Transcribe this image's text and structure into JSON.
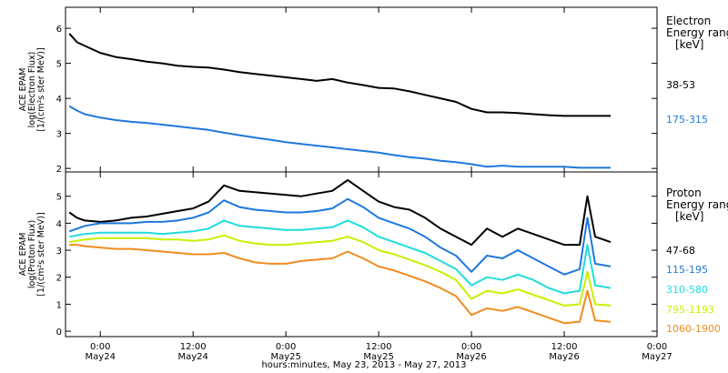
{
  "chart_data": [
    {
      "type": "line",
      "panel": "electron",
      "ylabel_lines": [
        "ACE EPAM",
        "log(Electron Flux)",
        "[1/(cm²s ster MeV)]"
      ],
      "legend_title_lines": [
        "Electron",
        "Energy range",
        "[keV]"
      ],
      "ylim": [
        1.9,
        6.6
      ],
      "yticks": [
        2,
        3,
        4,
        5,
        6
      ],
      "series": [
        {
          "name": "38-53",
          "color": "#000000",
          "points": [
            [
              -4,
              5.85
            ],
            [
              -3,
              5.6
            ],
            [
              -2,
              5.5
            ],
            [
              0,
              5.3
            ],
            [
              2,
              5.18
            ],
            [
              4,
              5.12
            ],
            [
              6,
              5.05
            ],
            [
              8,
              5.0
            ],
            [
              10,
              4.93
            ],
            [
              12,
              4.9
            ],
            [
              14,
              4.88
            ],
            [
              16,
              4.82
            ],
            [
              18,
              4.75
            ],
            [
              20,
              4.7
            ],
            [
              22,
              4.65
            ],
            [
              24,
              4.6
            ],
            [
              26,
              4.55
            ],
            [
              28,
              4.5
            ],
            [
              30,
              4.55
            ],
            [
              32,
              4.45
            ],
            [
              34,
              4.38
            ],
            [
              36,
              4.3
            ],
            [
              38,
              4.28
            ],
            [
              40,
              4.2
            ],
            [
              42,
              4.1
            ],
            [
              44,
              4.0
            ],
            [
              46,
              3.9
            ],
            [
              48,
              3.7
            ],
            [
              50,
              3.6
            ],
            [
              52,
              3.6
            ],
            [
              54,
              3.58
            ],
            [
              56,
              3.55
            ],
            [
              58,
              3.52
            ],
            [
              60,
              3.5
            ],
            [
              62,
              3.5
            ],
            [
              64,
              3.5
            ],
            [
              66,
              3.5
            ]
          ]
        },
        {
          "name": "175-315",
          "color": "#1E78DC",
          "points": [
            [
              -4,
              3.78
            ],
            [
              -3,
              3.65
            ],
            [
              -2,
              3.55
            ],
            [
              0,
              3.45
            ],
            [
              2,
              3.38
            ],
            [
              4,
              3.33
            ],
            [
              6,
              3.3
            ],
            [
              8,
              3.25
            ],
            [
              10,
              3.2
            ],
            [
              12,
              3.15
            ],
            [
              14,
              3.1
            ],
            [
              16,
              3.02
            ],
            [
              18,
              2.95
            ],
            [
              20,
              2.88
            ],
            [
              22,
              2.82
            ],
            [
              24,
              2.75
            ],
            [
              26,
              2.7
            ],
            [
              28,
              2.65
            ],
            [
              30,
              2.6
            ],
            [
              32,
              2.55
            ],
            [
              34,
              2.5
            ],
            [
              36,
              2.45
            ],
            [
              38,
              2.38
            ],
            [
              40,
              2.32
            ],
            [
              42,
              2.28
            ],
            [
              44,
              2.22
            ],
            [
              46,
              2.18
            ],
            [
              48,
              2.12
            ],
            [
              50,
              2.05
            ],
            [
              52,
              2.08
            ],
            [
              54,
              2.05
            ],
            [
              56,
              2.05
            ],
            [
              58,
              2.05
            ],
            [
              60,
              2.05
            ],
            [
              62,
              2.02
            ],
            [
              64,
              2.02
            ],
            [
              66,
              2.02
            ]
          ]
        }
      ]
    },
    {
      "type": "line",
      "panel": "proton",
      "ylabel_lines": [
        "ACE EPAM",
        "log(Proton Flux)",
        "[1/(cm²s ster MeV)]"
      ],
      "legend_title_lines": [
        "Proton",
        "Energy range",
        "[keV]"
      ],
      "ylim": [
        -0.2,
        5.9
      ],
      "yticks": [
        0,
        1,
        2,
        3,
        4,
        5
      ],
      "series": [
        {
          "name": "47-68",
          "color": "#000000",
          "points": [
            [
              -4,
              4.4
            ],
            [
              -3,
              4.2
            ],
            [
              -2,
              4.1
            ],
            [
              0,
              4.05
            ],
            [
              2,
              4.1
            ],
            [
              4,
              4.2
            ],
            [
              6,
              4.25
            ],
            [
              8,
              4.35
            ],
            [
              10,
              4.45
            ],
            [
              12,
              4.55
            ],
            [
              14,
              4.8
            ],
            [
              16,
              5.4
            ],
            [
              18,
              5.2
            ],
            [
              20,
              5.15
            ],
            [
              22,
              5.1
            ],
            [
              24,
              5.05
            ],
            [
              26,
              5.0
            ],
            [
              28,
              5.1
            ],
            [
              30,
              5.2
            ],
            [
              32,
              5.6
            ],
            [
              34,
              5.2
            ],
            [
              36,
              4.8
            ],
            [
              38,
              4.6
            ],
            [
              40,
              4.5
            ],
            [
              42,
              4.2
            ],
            [
              44,
              3.8
            ],
            [
              46,
              3.5
            ],
            [
              48,
              3.2
            ],
            [
              50,
              3.8
            ],
            [
              52,
              3.5
            ],
            [
              54,
              3.8
            ],
            [
              56,
              3.6
            ],
            [
              58,
              3.4
            ],
            [
              60,
              3.2
            ],
            [
              62,
              3.2
            ],
            [
              63,
              5.0
            ],
            [
              64,
              3.5
            ],
            [
              66,
              3.3
            ]
          ]
        },
        {
          "name": "115-195",
          "color": "#1E78DC",
          "points": [
            [
              -4,
              3.7
            ],
            [
              -3,
              3.8
            ],
            [
              -2,
              3.9
            ],
            [
              0,
              4.0
            ],
            [
              2,
              4.0
            ],
            [
              4,
              4.0
            ],
            [
              6,
              4.05
            ],
            [
              8,
              4.05
            ],
            [
              10,
              4.1
            ],
            [
              12,
              4.2
            ],
            [
              14,
              4.4
            ],
            [
              16,
              4.85
            ],
            [
              18,
              4.6
            ],
            [
              20,
              4.5
            ],
            [
              22,
              4.45
            ],
            [
              24,
              4.4
            ],
            [
              26,
              4.4
            ],
            [
              28,
              4.45
            ],
            [
              30,
              4.55
            ],
            [
              32,
              4.9
            ],
            [
              34,
              4.6
            ],
            [
              36,
              4.2
            ],
            [
              38,
              4.0
            ],
            [
              40,
              3.8
            ],
            [
              42,
              3.5
            ],
            [
              44,
              3.1
            ],
            [
              46,
              2.8
            ],
            [
              48,
              2.2
            ],
            [
              50,
              2.8
            ],
            [
              52,
              2.7
            ],
            [
              54,
              3.0
            ],
            [
              56,
              2.7
            ],
            [
              58,
              2.4
            ],
            [
              60,
              2.1
            ],
            [
              62,
              2.3
            ],
            [
              63,
              4.2
            ],
            [
              64,
              2.5
            ],
            [
              66,
              2.4
            ]
          ]
        },
        {
          "name": "310-580",
          "color": "#20DCDC",
          "points": [
            [
              -4,
              3.5
            ],
            [
              -3,
              3.55
            ],
            [
              -2,
              3.6
            ],
            [
              0,
              3.65
            ],
            [
              2,
              3.65
            ],
            [
              4,
              3.65
            ],
            [
              6,
              3.65
            ],
            [
              8,
              3.6
            ],
            [
              10,
              3.65
            ],
            [
              12,
              3.7
            ],
            [
              14,
              3.8
            ],
            [
              16,
              4.1
            ],
            [
              18,
              3.9
            ],
            [
              20,
              3.85
            ],
            [
              22,
              3.8
            ],
            [
              24,
              3.75
            ],
            [
              26,
              3.75
            ],
            [
              28,
              3.8
            ],
            [
              30,
              3.85
            ],
            [
              32,
              4.1
            ],
            [
              34,
              3.85
            ],
            [
              36,
              3.5
            ],
            [
              38,
              3.3
            ],
            [
              40,
              3.1
            ],
            [
              42,
              2.9
            ],
            [
              44,
              2.6
            ],
            [
              46,
              2.3
            ],
            [
              48,
              1.7
            ],
            [
              50,
              2.0
            ],
            [
              52,
              1.9
            ],
            [
              54,
              2.1
            ],
            [
              56,
              1.9
            ],
            [
              58,
              1.6
            ],
            [
              60,
              1.4
            ],
            [
              62,
              1.5
            ],
            [
              63,
              3.2
            ],
            [
              64,
              1.7
            ],
            [
              66,
              1.6
            ]
          ]
        },
        {
          "name": "795-1193",
          "color": "#C8F000",
          "points": [
            [
              -4,
              3.3
            ],
            [
              -3,
              3.35
            ],
            [
              -2,
              3.4
            ],
            [
              0,
              3.45
            ],
            [
              2,
              3.45
            ],
            [
              4,
              3.45
            ],
            [
              6,
              3.45
            ],
            [
              8,
              3.4
            ],
            [
              10,
              3.4
            ],
            [
              12,
              3.35
            ],
            [
              14,
              3.4
            ],
            [
              16,
              3.55
            ],
            [
              18,
              3.35
            ],
            [
              20,
              3.25
            ],
            [
              22,
              3.2
            ],
            [
              24,
              3.2
            ],
            [
              26,
              3.25
            ],
            [
              28,
              3.3
            ],
            [
              30,
              3.35
            ],
            [
              32,
              3.5
            ],
            [
              34,
              3.3
            ],
            [
              36,
              3.0
            ],
            [
              38,
              2.85
            ],
            [
              40,
              2.65
            ],
            [
              42,
              2.45
            ],
            [
              44,
              2.2
            ],
            [
              46,
              1.9
            ],
            [
              48,
              1.2
            ],
            [
              50,
              1.5
            ],
            [
              52,
              1.4
            ],
            [
              54,
              1.55
            ],
            [
              56,
              1.35
            ],
            [
              58,
              1.15
            ],
            [
              60,
              0.95
            ],
            [
              62,
              1.0
            ],
            [
              63,
              2.2
            ],
            [
              64,
              1.0
            ],
            [
              66,
              0.95
            ]
          ]
        },
        {
          "name": "1060-1900",
          "color": "#F08C1E",
          "points": [
            [
              -4,
              3.2
            ],
            [
              -3,
              3.2
            ],
            [
              -2,
              3.15
            ],
            [
              0,
              3.1
            ],
            [
              2,
              3.05
            ],
            [
              4,
              3.05
            ],
            [
              6,
              3.0
            ],
            [
              8,
              2.95
            ],
            [
              10,
              2.9
            ],
            [
              12,
              2.85
            ],
            [
              14,
              2.85
            ],
            [
              16,
              2.9
            ],
            [
              18,
              2.7
            ],
            [
              20,
              2.55
            ],
            [
              22,
              2.5
            ],
            [
              24,
              2.5
            ],
            [
              26,
              2.6
            ],
            [
              28,
              2.65
            ],
            [
              30,
              2.7
            ],
            [
              32,
              2.95
            ],
            [
              34,
              2.7
            ],
            [
              36,
              2.4
            ],
            [
              38,
              2.25
            ],
            [
              40,
              2.05
            ],
            [
              42,
              1.85
            ],
            [
              44,
              1.6
            ],
            [
              46,
              1.3
            ],
            [
              48,
              0.6
            ],
            [
              50,
              0.85
            ],
            [
              52,
              0.75
            ],
            [
              54,
              0.9
            ],
            [
              56,
              0.7
            ],
            [
              58,
              0.5
            ],
            [
              60,
              0.3
            ],
            [
              62,
              0.35
            ],
            [
              63,
              1.5
            ],
            [
              64,
              0.4
            ],
            [
              66,
              0.35
            ]
          ]
        }
      ]
    }
  ],
  "x_axis": {
    "xlim": [
      -4.5,
      72
    ],
    "ticks": [
      {
        "x": 0,
        "time": "0:00",
        "date": "May24"
      },
      {
        "x": 12,
        "time": "12:00",
        "date": "May24"
      },
      {
        "x": 24,
        "time": "0:00",
        "date": "May25"
      },
      {
        "x": 36,
        "time": "12:00",
        "date": "May25"
      },
      {
        "x": 48,
        "time": "0:00",
        "date": "May26"
      },
      {
        "x": 60,
        "time": "12:00",
        "date": "May26"
      },
      {
        "x": 72,
        "time": "0:00",
        "date": "May27"
      }
    ],
    "label": "hours:minutes, May 23, 2013 - May 27, 2013"
  }
}
